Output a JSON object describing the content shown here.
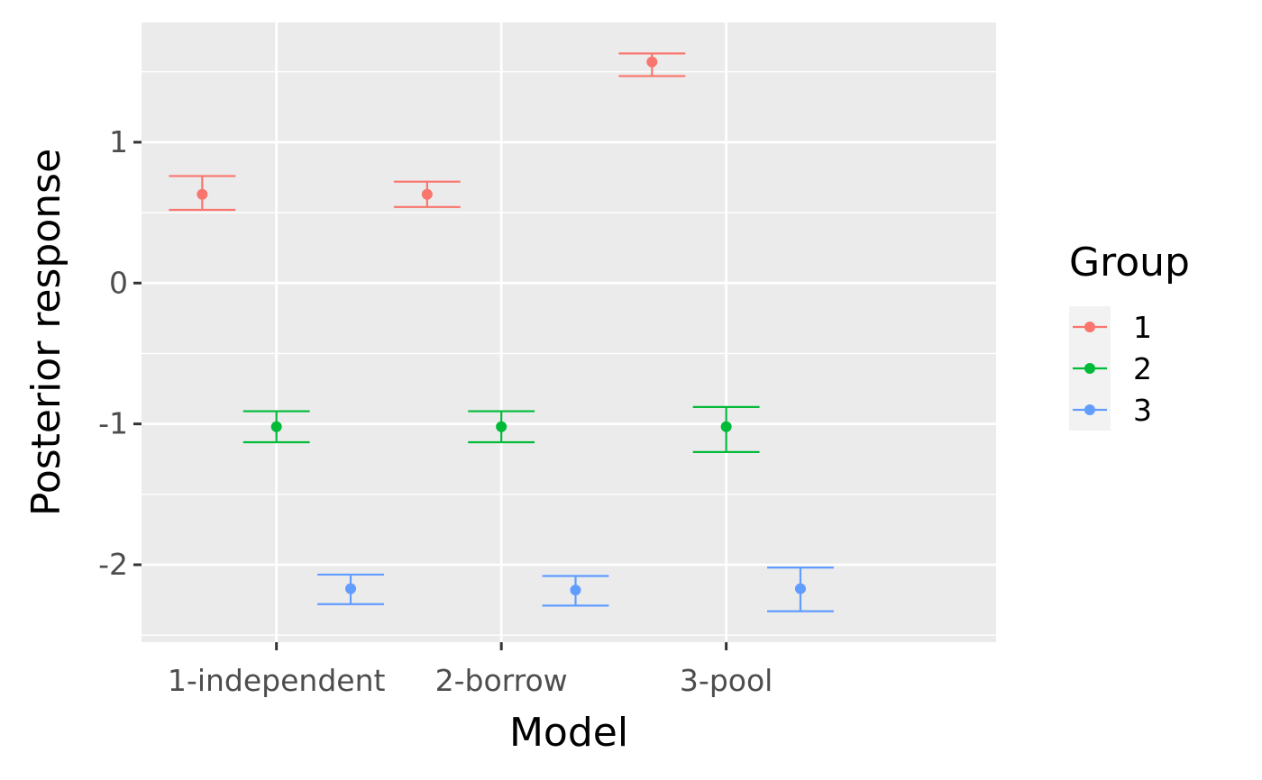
{
  "chart_data": {
    "type": "errorbar",
    "xlabel": "Model",
    "ylabel": "Posterior response",
    "categories": [
      "1-independent",
      "2-borrow",
      "3-pool"
    ],
    "ylim": [
      -2.55,
      1.85
    ],
    "yticks": [
      -2,
      -1,
      0,
      1
    ],
    "ytick_labels": [
      "-2",
      "-1",
      "0",
      "1"
    ],
    "grid": true,
    "legend": {
      "title": "Group",
      "position": "right"
    },
    "series": [
      {
        "name": "1",
        "color": "#F8766D",
        "points": [
          {
            "category": "1-independent",
            "y": 0.63,
            "lower": 0.52,
            "upper": 0.76
          },
          {
            "category": "2-borrow",
            "y": 0.63,
            "lower": 0.54,
            "upper": 0.72
          },
          {
            "category": "3-pool",
            "y": 1.57,
            "lower": 1.47,
            "upper": 1.63
          }
        ]
      },
      {
        "name": "2",
        "color": "#00BA38",
        "points": [
          {
            "category": "1-independent",
            "y": -1.02,
            "lower": -1.13,
            "upper": -0.91
          },
          {
            "category": "2-borrow",
            "y": -1.02,
            "lower": -1.13,
            "upper": -0.91
          },
          {
            "category": "3-pool",
            "y": -1.02,
            "lower": -1.2,
            "upper": -0.88
          }
        ]
      },
      {
        "name": "3",
        "color": "#619CFF",
        "points": [
          {
            "category": "1-independent",
            "y": -2.17,
            "lower": -2.28,
            "upper": -2.07
          },
          {
            "category": "2-borrow",
            "y": -2.18,
            "lower": -2.29,
            "upper": -2.08
          },
          {
            "category": "3-pool",
            "y": -2.17,
            "lower": -2.33,
            "upper": -2.02
          }
        ]
      }
    ]
  }
}
